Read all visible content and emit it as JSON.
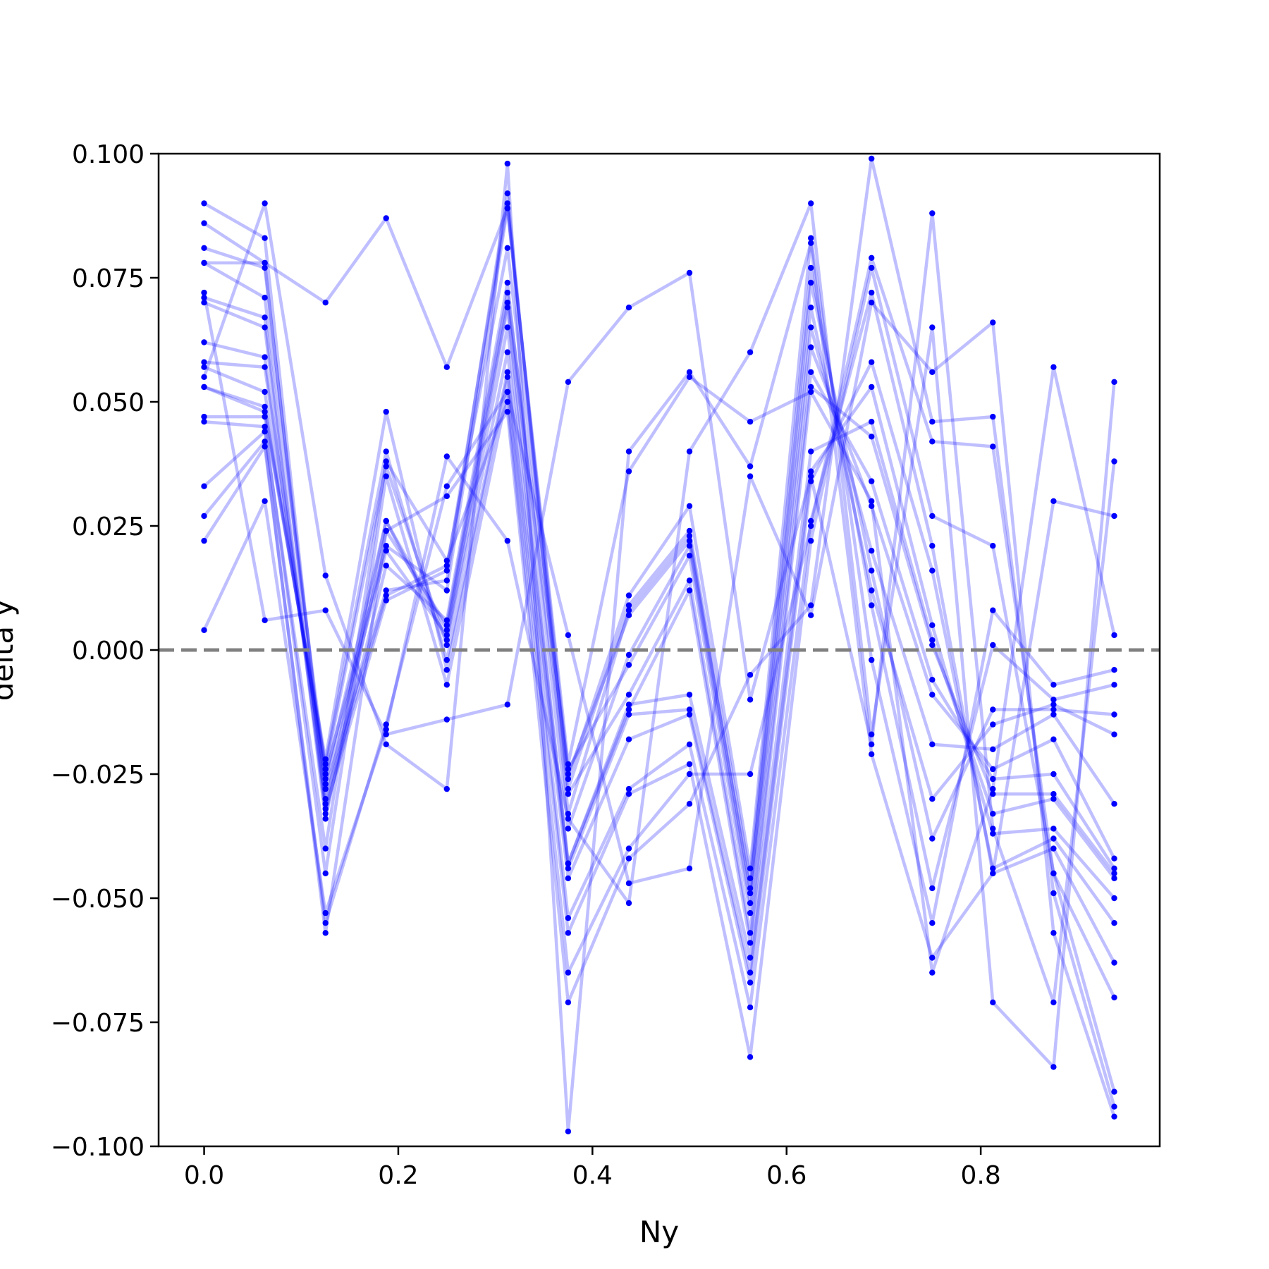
{
  "chart_data": {
    "type": "line",
    "xlabel": "Ny",
    "ylabel": "delta y",
    "xlim": [
      -0.046875,
      0.984375
    ],
    "ylim": [
      -0.1,
      0.1
    ],
    "x_ticks": [
      0.0,
      0.2,
      0.4,
      0.6,
      0.8
    ],
    "x_tick_labels": [
      "0.0",
      "0.2",
      "0.4",
      "0.6",
      "0.8"
    ],
    "y_ticks": [
      0.1,
      0.075,
      0.05,
      0.025,
      0.0,
      -0.025,
      -0.05,
      -0.075,
      -0.1
    ],
    "y_tick_labels": [
      "0.100",
      "0.075",
      "0.050",
      "0.025",
      "0.000",
      "−0.025",
      "−0.050",
      "−0.075",
      "−0.100"
    ],
    "reference_line": 0.0,
    "grid": false,
    "line_color": "#0000ff",
    "line_opacity": 0.25,
    "marker_color": "#0000ff",
    "reference_color": "#808080",
    "x": [
      0.0,
      0.0625,
      0.125,
      0.1875,
      0.25,
      0.3125,
      0.375,
      0.4375,
      0.5,
      0.5625,
      0.625,
      0.6875,
      0.75,
      0.8125,
      0.875,
      0.9375
    ],
    "series": [
      {
        "values": [
          0.09,
          0.083,
          -0.03,
          0.011,
          0.017,
          0.081,
          -0.026,
          0.011,
          0.029,
          -0.044,
          0.083,
          -0.002,
          -0.055,
          0.008,
          -0.007,
          -0.004
        ]
      },
      {
        "values": [
          0.086,
          0.078,
          -0.032,
          0.01,
          0.016,
          0.09,
          -0.028,
          0.009,
          0.024,
          -0.046,
          0.077,
          0.009,
          -0.048,
          0.001,
          -0.01,
          -0.007
        ]
      },
      {
        "values": [
          0.081,
          0.077,
          -0.028,
          0.012,
          0.014,
          0.092,
          -0.033,
          0.008,
          0.023,
          -0.049,
          0.074,
          0.016,
          -0.038,
          -0.012,
          -0.012,
          -0.013
        ]
      },
      {
        "values": [
          0.078,
          0.071,
          -0.025,
          0.021,
          0.012,
          0.089,
          -0.025,
          0.007,
          0.022,
          -0.048,
          0.069,
          0.012,
          -0.03,
          -0.015,
          -0.011,
          -0.017
        ]
      },
      {
        "values": [
          0.071,
          0.067,
          -0.033,
          0.017,
          0.006,
          0.074,
          -0.036,
          -0.001,
          0.021,
          -0.051,
          0.065,
          0.02,
          -0.019,
          -0.02,
          -0.013,
          -0.031
        ]
      },
      {
        "values": [
          0.07,
          0.065,
          -0.034,
          0.024,
          0.005,
          0.072,
          -0.024,
          -0.003,
          0.019,
          -0.053,
          0.061,
          0.029,
          -0.009,
          -0.024,
          -0.018,
          -0.042
        ]
      },
      {
        "values": [
          0.062,
          0.059,
          -0.031,
          0.026,
          0.004,
          0.07,
          -0.029,
          -0.009,
          0.014,
          -0.057,
          0.056,
          0.034,
          -0.006,
          -0.026,
          -0.025,
          -0.044
        ]
      },
      {
        "values": [
          0.058,
          0.057,
          -0.027,
          0.02,
          0.003,
          0.069,
          -0.043,
          -0.012,
          0.012,
          -0.059,
          0.053,
          0.043,
          0.001,
          -0.029,
          -0.029,
          -0.045
        ]
      },
      {
        "values": [
          0.057,
          0.052,
          -0.026,
          0.026,
          0.002,
          0.065,
          -0.043,
          -0.011,
          -0.009,
          -0.062,
          0.04,
          0.046,
          0.002,
          -0.033,
          -0.03,
          -0.046
        ]
      },
      {
        "values": [
          0.053,
          0.049,
          -0.024,
          0.037,
          0.001,
          0.06,
          -0.044,
          -0.013,
          -0.012,
          -0.065,
          0.036,
          0.053,
          0.005,
          -0.037,
          -0.036,
          -0.05
        ]
      },
      {
        "values": [
          0.053,
          0.048,
          -0.023,
          0.04,
          -0.002,
          0.056,
          -0.046,
          -0.018,
          -0.013,
          -0.067,
          0.034,
          0.058,
          0.016,
          -0.044,
          -0.038,
          -0.055
        ]
      },
      {
        "values": [
          0.047,
          0.047,
          -0.022,
          0.048,
          -0.004,
          0.055,
          -0.054,
          -0.028,
          -0.019,
          -0.072,
          0.026,
          0.072,
          0.021,
          -0.045,
          -0.04,
          -0.063
        ]
      },
      {
        "values": [
          0.046,
          0.045,
          -0.045,
          0.035,
          -0.007,
          0.052,
          -0.057,
          -0.029,
          -0.023,
          -0.082,
          0.022,
          0.077,
          0.027,
          0.021,
          -0.045,
          -0.07
        ]
      },
      {
        "values": [
          0.033,
          0.044,
          -0.04,
          0.038,
          0.018,
          0.05,
          -0.065,
          -0.04,
          -0.025,
          -0.025,
          0.025,
          0.079,
          0.042,
          0.041,
          -0.045,
          -0.089
        ]
      },
      {
        "values": [
          0.027,
          0.042,
          -0.057,
          0.024,
          0.031,
          0.048,
          -0.071,
          -0.042,
          -0.031,
          -0.005,
          0.009,
          0.099,
          0.046,
          0.047,
          -0.049,
          -0.092
        ]
      },
      {
        "values": [
          0.022,
          0.041,
          -0.055,
          -0.015,
          0.033,
          0.052,
          0.003,
          -0.047,
          -0.044,
          0.035,
          0.007,
          0.07,
          0.056,
          0.066,
          -0.057,
          -0.094
        ]
      },
      {
        "values": [
          0.004,
          0.03,
          -0.053,
          -0.016,
          0.039,
          0.022,
          -0.034,
          -0.051,
          0.04,
          0.06,
          0.09,
          -0.017,
          0.065,
          -0.071,
          -0.084,
          0.054
        ]
      },
      {
        "values": [
          0.072,
          0.006,
          0.008,
          -0.017,
          -0.014,
          -0.011,
          0.054,
          0.069,
          0.076,
          -0.01,
          0.035,
          -0.019,
          0.088,
          -0.036,
          -0.071,
          0.038
        ]
      },
      {
        "values": [
          0.055,
          0.09,
          0.015,
          -0.019,
          -0.028,
          0.098,
          -0.097,
          0.04,
          0.056,
          0.037,
          0.082,
          -0.021,
          -0.062,
          -0.045,
          0.03,
          0.027
        ]
      },
      {
        "values": [
          0.078,
          0.078,
          0.07,
          0.087,
          0.057,
          0.089,
          -0.023,
          0.036,
          0.055,
          0.046,
          0.052,
          0.03,
          -0.065,
          -0.028,
          0.057,
          0.003
        ]
      }
    ]
  }
}
